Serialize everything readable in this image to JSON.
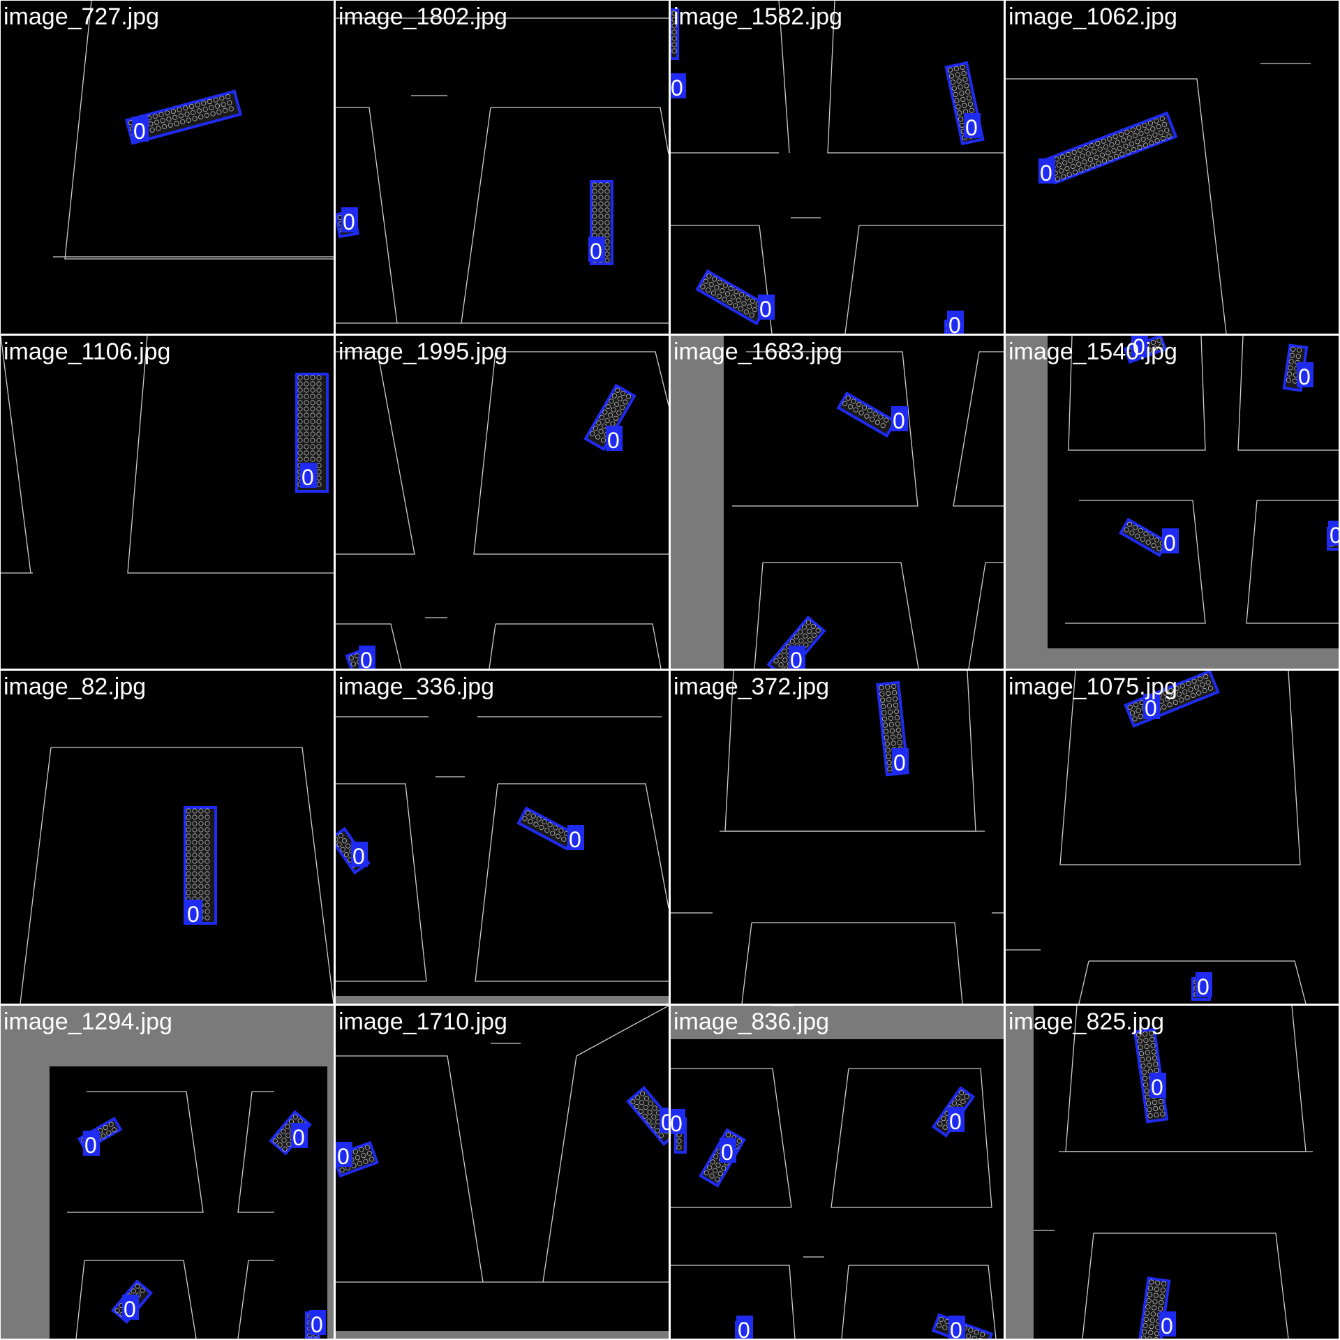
{
  "colors": {
    "background": "#000000",
    "separator": "#ffffff",
    "box": "#1f2bf0",
    "label_fill": "#1f2bf0",
    "label_text": "#ffffff",
    "edges": "#cfcfcf",
    "pad_gray": "#7a7a7a"
  },
  "tiles": [
    {
      "title": "image_727.jpg",
      "detections": [
        {
          "class": "0"
        }
      ]
    },
    {
      "title": "image_1802.jpg",
      "detections": [
        {
          "class": "0"
        },
        {
          "class": "0"
        }
      ]
    },
    {
      "title": "image_1582.jpg",
      "detections": [
        {
          "class": "0"
        },
        {
          "class": "0"
        },
        {
          "class": "0"
        },
        {
          "class": "0"
        }
      ]
    },
    {
      "title": "image_1062.jpg",
      "detections": [
        {
          "class": "0"
        }
      ]
    },
    {
      "title": "image_1106.jpg",
      "detections": [
        {
          "class": "0"
        }
      ]
    },
    {
      "title": "image_1995.jpg",
      "detections": [
        {
          "class": "0"
        },
        {
          "class": "0"
        }
      ]
    },
    {
      "title": "image_1683.jpg",
      "detections": [
        {
          "class": "0"
        },
        {
          "class": "0"
        }
      ]
    },
    {
      "title": "image_1540.jpg",
      "detections": [
        {
          "class": "0"
        },
        {
          "class": "0"
        },
        {
          "class": "0"
        },
        {
          "class": "0"
        }
      ]
    },
    {
      "title": "image_82.jpg",
      "detections": [
        {
          "class": "0"
        }
      ]
    },
    {
      "title": "image_336.jpg",
      "detections": [
        {
          "class": "0"
        },
        {
          "class": "0"
        }
      ]
    },
    {
      "title": "image_372.jpg",
      "detections": [
        {
          "class": "0"
        }
      ]
    },
    {
      "title": "image_1075.jpg",
      "detections": [
        {
          "class": "0"
        },
        {
          "class": "0"
        }
      ]
    },
    {
      "title": "image_1294.jpg",
      "detections": [
        {
          "class": "0"
        },
        {
          "class": "0"
        },
        {
          "class": "0"
        },
        {
          "class": "0"
        }
      ]
    },
    {
      "title": "image_1710.jpg",
      "detections": [
        {
          "class": "0"
        },
        {
          "class": "0"
        }
      ]
    },
    {
      "title": "image_836.jpg",
      "detections": [
        {
          "class": "0"
        },
        {
          "class": "0"
        },
        {
          "class": "0"
        },
        {
          "class": "0"
        },
        {
          "class": "0"
        }
      ]
    },
    {
      "title": "image_825.jpg",
      "detections": [
        {
          "class": "0"
        },
        {
          "class": "0"
        }
      ]
    }
  ]
}
